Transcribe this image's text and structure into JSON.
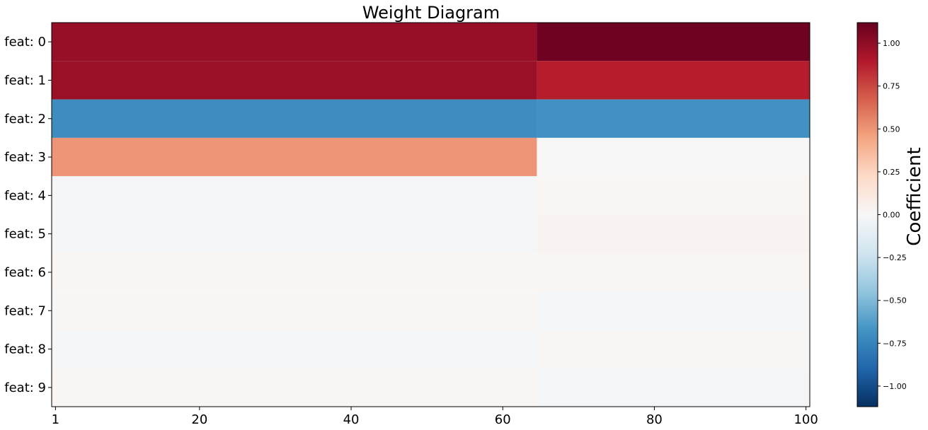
{
  "chart_data": {
    "type": "heatmap",
    "title": "Weight Diagram",
    "xlabel": "",
    "ylabel": "",
    "x_range": [
      1,
      100
    ],
    "x_ticks": [
      1,
      20,
      40,
      60,
      80,
      100
    ],
    "x_tick_labels": [
      "1",
      "20",
      "40",
      "60",
      "80",
      "100"
    ],
    "rows": [
      "feat: 0",
      "feat: 1",
      "feat: 2",
      "feat: 3",
      "feat: 4",
      "feat: 5",
      "feat: 6",
      "feat: 7",
      "feat: 8",
      "feat: 9"
    ],
    "colormap": "RdBu_r",
    "colorbar": {
      "label": "Coefficient",
      "vmin": -1.12,
      "vmax": 1.12,
      "ticks": [
        1.0,
        0.75,
        0.5,
        0.25,
        0.0,
        -0.25,
        -0.5,
        -0.75,
        -1.0
      ],
      "tick_labels": [
        "1.00",
        "0.75",
        "0.50",
        "0.25",
        "0.00",
        "−0.25",
        "−0.50",
        "−0.75",
        "−1.00"
      ]
    },
    "segments": [
      {
        "row": "feat: 0",
        "x_start": 1,
        "x_end": 64,
        "value": 0.98
      },
      {
        "row": "feat: 0",
        "x_start": 65,
        "x_end": 100,
        "value": 1.1
      },
      {
        "row": "feat: 1",
        "x_start": 1,
        "x_end": 64,
        "value": 0.97
      },
      {
        "row": "feat: 1",
        "x_start": 65,
        "x_end": 100,
        "value": 0.88
      },
      {
        "row": "feat: 2",
        "x_start": 1,
        "x_end": 64,
        "value": -0.7
      },
      {
        "row": "feat: 2",
        "x_start": 65,
        "x_end": 100,
        "value": -0.68
      },
      {
        "row": "feat: 3",
        "x_start": 1,
        "x_end": 64,
        "value": 0.5
      },
      {
        "row": "feat: 3",
        "x_start": 65,
        "x_end": 100,
        "value": 0.0
      },
      {
        "row": "feat: 4",
        "x_start": 1,
        "x_end": 64,
        "value": -0.02
      },
      {
        "row": "feat: 4",
        "x_start": 65,
        "x_end": 100,
        "value": 0.02
      },
      {
        "row": "feat: 5",
        "x_start": 1,
        "x_end": 64,
        "value": -0.02
      },
      {
        "row": "feat: 5",
        "x_start": 65,
        "x_end": 100,
        "value": 0.03
      },
      {
        "row": "feat: 6",
        "x_start": 1,
        "x_end": 64,
        "value": 0.02
      },
      {
        "row": "feat: 6",
        "x_start": 65,
        "x_end": 100,
        "value": 0.02
      },
      {
        "row": "feat: 7",
        "x_start": 1,
        "x_end": 64,
        "value": 0.01
      },
      {
        "row": "feat: 7",
        "x_start": 65,
        "x_end": 100,
        "value": -0.01
      },
      {
        "row": "feat: 8",
        "x_start": 1,
        "x_end": 64,
        "value": -0.02
      },
      {
        "row": "feat: 8",
        "x_start": 65,
        "x_end": 100,
        "value": 0.01
      },
      {
        "row": "feat: 9",
        "x_start": 1,
        "x_end": 64,
        "value": 0.02
      },
      {
        "row": "feat: 9",
        "x_start": 65,
        "x_end": 100,
        "value": -0.02
      }
    ]
  }
}
